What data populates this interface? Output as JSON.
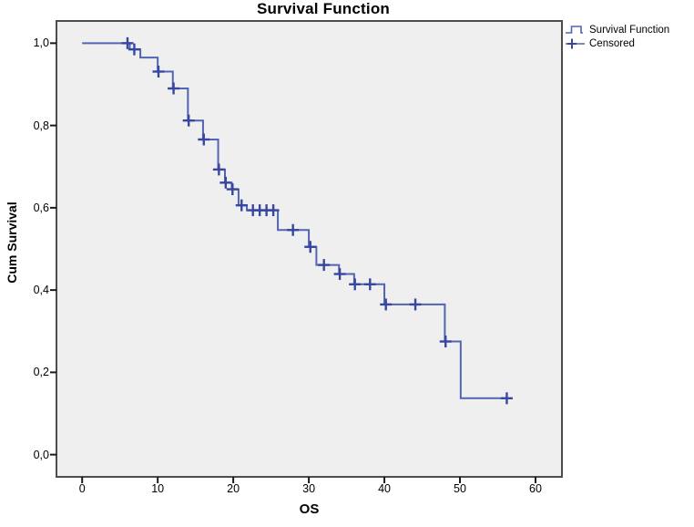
{
  "title": "Survival Function",
  "axes": {
    "x_label": "OS",
    "y_label": "Cum Survival",
    "x_tick_labels": [
      "0",
      "10",
      "20",
      "30",
      "40",
      "50",
      "60"
    ],
    "x_tick_values": [
      0,
      10,
      20,
      30,
      40,
      50,
      60
    ],
    "y_tick_labels": [
      "0,0",
      "0,2",
      "0,4",
      "0,6",
      "0,8",
      "1,0"
    ],
    "y_tick_values": [
      0,
      0.2,
      0.4,
      0.6,
      0.8,
      1.0
    ]
  },
  "legend": {
    "items": [
      {
        "label": "Survival Function",
        "symbol": "step-line-icon"
      },
      {
        "label": "Censored",
        "symbol": "plus-icon"
      }
    ]
  },
  "colors": {
    "line": "#5264B4",
    "censor": "#3747A0",
    "plot_bg": "#F0EFEF",
    "plot_border": "#4D4D4D",
    "tick": "#1A1A1A",
    "text": "#000000"
  },
  "chart_data": {
    "type": "line",
    "subtype": "kaplan-meier-step",
    "title": "Survival Function",
    "xlabel": "OS",
    "ylabel": "Cum Survival",
    "xlim": [
      -3.4,
      63.5
    ],
    "ylim": [
      -0.054,
      1.054
    ],
    "grid": false,
    "legend_position": "top-right-outside",
    "series": [
      {
        "name": "Survival Function",
        "steps": [
          [
            0,
            1.0
          ],
          [
            6.3,
            0.985
          ],
          [
            7.7,
            0.965
          ],
          [
            10,
            0.931
          ],
          [
            12,
            0.89
          ],
          [
            14,
            0.812
          ],
          [
            16,
            0.766
          ],
          [
            18,
            0.693
          ],
          [
            18.9,
            0.661
          ],
          [
            19.8,
            0.645
          ],
          [
            20.7,
            0.606
          ],
          [
            21.8,
            0.594
          ],
          [
            25.9,
            0.546
          ],
          [
            30,
            0.505
          ],
          [
            31,
            0.461
          ],
          [
            34,
            0.439
          ],
          [
            36,
            0.414
          ],
          [
            40,
            0.365
          ],
          [
            48,
            0.275
          ],
          [
            50.1,
            0.137
          ]
        ],
        "end_time": 56.2
      }
    ],
    "censored": [
      [
        6.0,
        1.0
      ],
      [
        6.9,
        0.985
      ],
      [
        10.1,
        0.931
      ],
      [
        12.1,
        0.89
      ],
      [
        14.1,
        0.812
      ],
      [
        16.1,
        0.766
      ],
      [
        18.1,
        0.693
      ],
      [
        19.0,
        0.661
      ],
      [
        19.9,
        0.645
      ],
      [
        21.1,
        0.606
      ],
      [
        22.6,
        0.594
      ],
      [
        23.5,
        0.594
      ],
      [
        24.4,
        0.594
      ],
      [
        25.3,
        0.594
      ],
      [
        27.9,
        0.546
      ],
      [
        30.2,
        0.505
      ],
      [
        32.0,
        0.461
      ],
      [
        34.1,
        0.439
      ],
      [
        36.1,
        0.414
      ],
      [
        38.1,
        0.414
      ],
      [
        40.2,
        0.365
      ],
      [
        44.1,
        0.365
      ],
      [
        48.1,
        0.275
      ],
      [
        56.2,
        0.137
      ]
    ]
  }
}
